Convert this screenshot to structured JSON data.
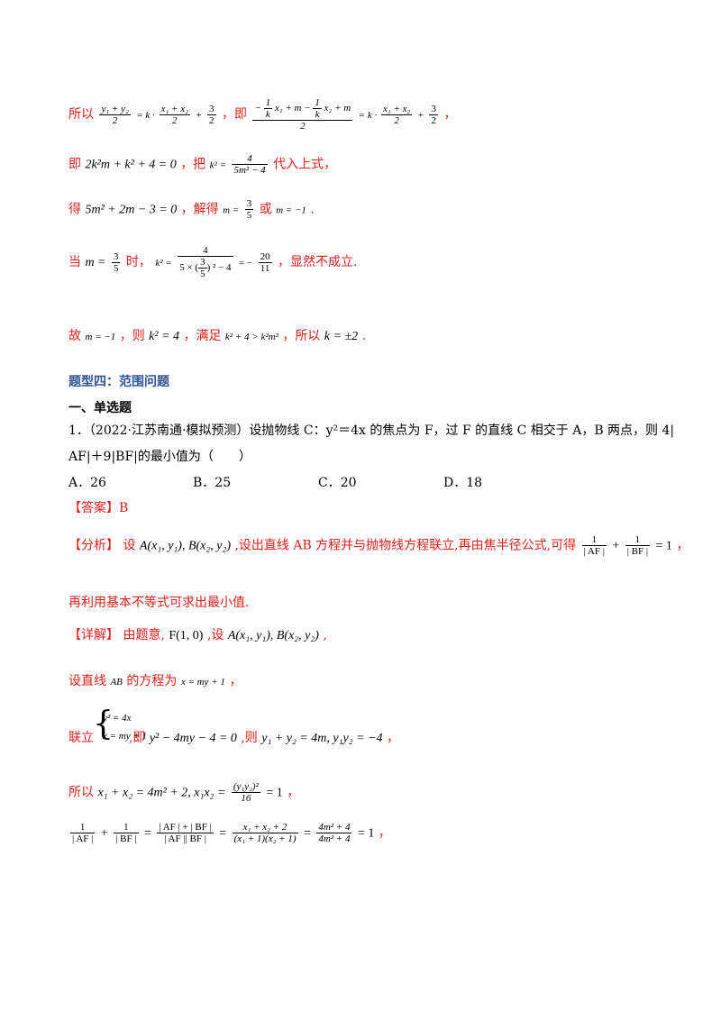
{
  "l1": {
    "t1": "所以",
    "f1_num": "y₁ + y₂",
    "f1_den": "2",
    "e1": "= k · ",
    "f2_num": "x₁ + x₂",
    "f2_den": "2",
    "e2": "+",
    "f3_num": "3",
    "f3_den": "2",
    "t2": "，即",
    "big_num_a": "−",
    "big_frac1_num": "1",
    "big_frac1_den": "k",
    "big_num_b": "x₁ + m −",
    "big_frac2_num": "1",
    "big_frac2_den": "k",
    "big_num_c": "x₂ + m",
    "big_den": "2",
    "e3": "= k · ",
    "f4_num": "x₁ + x₂",
    "f4_den": "2",
    "e4": "+",
    "f5_num": "3",
    "f5_den": "2",
    "t3": "，"
  },
  "l2": {
    "t1": "即",
    "eq1": "2k²m + k² + 4 = 0",
    "t2": "，把",
    "eq2": "k² =",
    "f_num": "4",
    "f_den": "5m² − 4",
    "t3": "代入上式，"
  },
  "l3": {
    "t1": "得",
    "eq1": "5m² + 2m − 3 = 0",
    "t2": "，解得",
    "eq2": "m =",
    "f_num": "3",
    "f_den": "5",
    "t3": "或",
    "eq3": "m = −1",
    "t4": "."
  },
  "l4": {
    "t1": "当",
    "eq1": "m =",
    "f_num": "3",
    "f_den": "5",
    "t2": "时，",
    "eq2": "k² =",
    "big_num": "4",
    "big_den_a": "5 ×",
    "paren_num": "3",
    "paren_den": "5",
    "big_den_b": "² − 4",
    "eq3": "= −",
    "f2_num": "20",
    "f2_den": "11",
    "t3": "，显然不成立."
  },
  "l5": {
    "t1": "故",
    "eq1": "m = −1",
    "t2": "，则",
    "eq2": "k² = 4",
    "t3": "，满足",
    "eq3": "k² + 4 > k²m²",
    "t4": "，所以",
    "eq4": "k = ±2",
    "t5": "."
  },
  "section_title": "题型四：范围问题",
  "sub_title": "一、单选题",
  "question": {
    "line1": "1．（2022·江苏南通·模拟预测）设抛物线 C：y²＝4x 的焦点为 F，过 F 的直线 C 相交于 A，B 两点，则 4|",
    "line2": "AF|＋9|BF|的最小值为（　　）",
    "opt_a": "A．26",
    "opt_b": "B．25",
    "opt_c": "C．20",
    "opt_d": "D．18"
  },
  "answer": {
    "label": "【答案】",
    "value": "B"
  },
  "analysis": {
    "label": "【分析】",
    "t1": "设",
    "eq1": "A(x₁, y₁), B(x₂, y₂)",
    "t2": ",设出直线 AB 方程并与抛物线方程联立,再由焦半径公式,可得",
    "f1_num": "1",
    "f1_den": "| AF |",
    "plus": "+",
    "f2_num": "1",
    "f2_den": "| BF |",
    "eq2": "= 1",
    "t3": "，",
    "line2": "再利用基本不等式可求出最小值."
  },
  "detail": {
    "label": "【详解】",
    "t1": "由题意,",
    "eq1": "F(1, 0)",
    "t2": ",设",
    "eq2": "A(x₁, y₁), B(x₂, y₂)",
    "t3": ","
  },
  "d2": {
    "t1": "设直线",
    "eq1": "AB",
    "t2": "的方程为",
    "eq2": "x = my + 1",
    "t3": "，"
  },
  "d3": {
    "t1": "联立",
    "sys1": "y² = 4x",
    "sys2": "x = my + 1",
    "t2": ",即",
    "eq1": "y² − 4my − 4 = 0",
    "t3": ",则",
    "eq2": "y₁ + y₂ = 4m, y₁y₂ = −4",
    "t4": "，"
  },
  "d4": {
    "t1": "所以",
    "eq1": "x₁ + x₂ = 4m² + 2, x₁x₂ =",
    "f_num": "(y₁y₂)²",
    "f_den": "16",
    "eq2": "= 1",
    "t2": "，"
  },
  "d5": {
    "f1_num": "1",
    "f1_den": "| AF |",
    "plus": "+",
    "f2_num": "1",
    "f2_den": "| BF |",
    "eq1": "=",
    "f3_num": "| AF | + | BF |",
    "f3_den": "| AF || BF |",
    "eq2": "=",
    "f4_num": "x₁ + x₂ + 2",
    "f4_den": "(x₁ + 1)(x₂ + 1)",
    "eq3": "=",
    "f5_num": "4m² + 4",
    "f5_den": "4m² + 4",
    "eq4": "= 1",
    "t1": "，"
  }
}
